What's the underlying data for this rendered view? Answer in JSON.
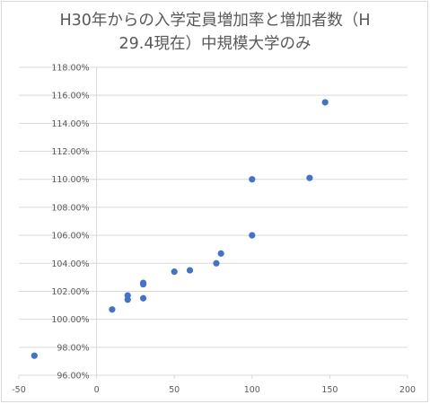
{
  "chart_data": {
    "type": "scatter",
    "title_line1": "H30年からの入学定員増加率と増加者数（H",
    "title_line2": "29.4現在）中規模大学のみ",
    "xlim": [
      -50,
      200
    ],
    "ylim": [
      0.96,
      1.18
    ],
    "x_ticks": [
      -50,
      0,
      50,
      100,
      150,
      200
    ],
    "x_tick_labels": [
      "-50",
      "0",
      "50",
      "100",
      "150",
      "200"
    ],
    "y_ticks": [
      0.96,
      0.98,
      1.0,
      1.02,
      1.04,
      1.06,
      1.08,
      1.1,
      1.12,
      1.14,
      1.16,
      1.18
    ],
    "y_tick_labels": [
      "96.00%",
      "98.00%",
      "100.00%",
      "102.00%",
      "104.00%",
      "106.00%",
      "108.00%",
      "110.00%",
      "112.00%",
      "114.00%",
      "116.00%",
      "118.00%"
    ],
    "grid": "horizontal",
    "marker_color": "#4472c4",
    "gridline_color": "#d9d9d9",
    "points": [
      {
        "x": -40,
        "y": 0.974
      },
      {
        "x": 10,
        "y": 1.007
      },
      {
        "x": 20,
        "y": 1.017
      },
      {
        "x": 20,
        "y": 1.014
      },
      {
        "x": 30,
        "y": 1.026
      },
      {
        "x": 30,
        "y": 1.025
      },
      {
        "x": 30,
        "y": 1.015
      },
      {
        "x": 50,
        "y": 1.034
      },
      {
        "x": 60,
        "y": 1.035
      },
      {
        "x": 77,
        "y": 1.04
      },
      {
        "x": 80,
        "y": 1.047
      },
      {
        "x": 100,
        "y": 1.06
      },
      {
        "x": 100,
        "y": 1.1
      },
      {
        "x": 137,
        "y": 1.101
      },
      {
        "x": 147,
        "y": 1.155
      }
    ]
  }
}
